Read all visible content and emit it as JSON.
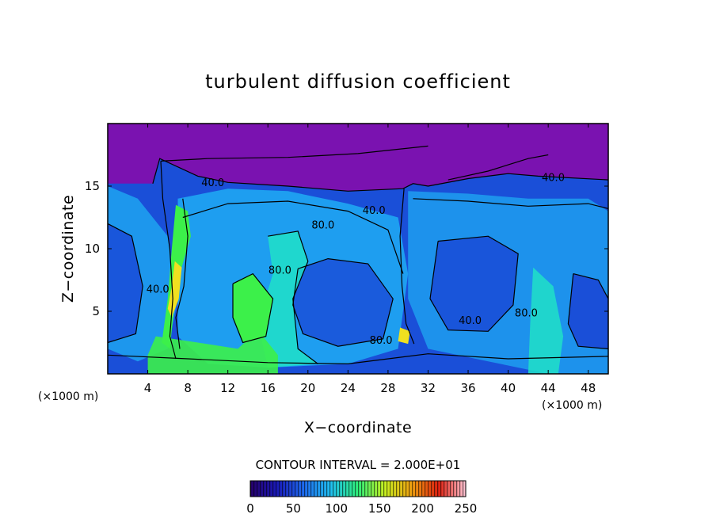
{
  "chart_data": {
    "type": "heatmap",
    "title": "turbulent diffusion coefficient",
    "xlabel": "X−coordinate",
    "ylabel": "Z−coordinate",
    "x_unit_left": "(×1000 m)",
    "x_unit_right": "(×1000 m)",
    "xlim": [
      0,
      50
    ],
    "ylim": [
      0,
      20
    ],
    "x_ticks": [
      4,
      8,
      12,
      16,
      20,
      24,
      28,
      32,
      36,
      40,
      44,
      48
    ],
    "y_ticks": [
      5,
      10,
      15
    ],
    "contour_interval_text": "CONTOUR INTERVAL = 2.000E+01",
    "contour_labels": [
      {
        "text": "40.0",
        "x": 44.5,
        "z": 15.4
      },
      {
        "text": "40.0",
        "x": 26.6,
        "z": 12.8
      },
      {
        "text": "80.0",
        "x": 21.5,
        "z": 11.6
      },
      {
        "text": "80.0",
        "x": 17.2,
        "z": 8.0
      },
      {
        "text": "40.0",
        "x": 5.0,
        "z": 6.5
      },
      {
        "text": "40.0",
        "x": 36.2,
        "z": 4.0
      },
      {
        "text": "80.0",
        "x": 41.8,
        "z": 4.6
      },
      {
        "text": "80.0",
        "x": 27.3,
        "z": 2.4
      },
      {
        "text": "40.0",
        "x": 10.5,
        "z": 15.0
      }
    ],
    "colorbar": {
      "range": [
        0,
        250
      ],
      "ticks": [
        "0",
        "50",
        "100",
        "150",
        "200",
        "250"
      ],
      "colors": [
        "#26006a",
        "#1a1ab8",
        "#1e6cf0",
        "#20c0f0",
        "#2ef07a",
        "#c8f020",
        "#f0a010",
        "#e02010",
        "#ffc8d8"
      ]
    },
    "field_colors": {
      "upper": "#7a12b0",
      "low": "#1a4fd8",
      "mid": "#1e9ef0",
      "high": "#20e0c8",
      "very_high": "#3cf04a",
      "peak": "#f0e020"
    },
    "grid": false
  }
}
